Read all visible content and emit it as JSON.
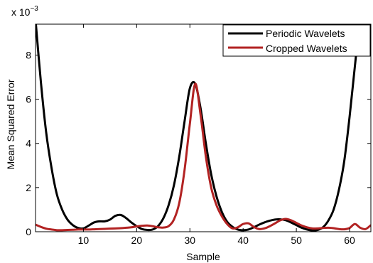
{
  "chart_data": {
    "type": "line",
    "title": "",
    "xlabel": "Sample",
    "ylabel": "Mean Squared Error",
    "xlim": [
      1,
      64
    ],
    "ylim": [
      0,
      9.4
    ],
    "y_scale_multiplier": "x 10",
    "y_scale_exponent": "−3",
    "x_ticks": [
      "10",
      "20",
      "30",
      "40",
      "50",
      "60"
    ],
    "y_ticks": [
      "0",
      "2",
      "4",
      "6",
      "8"
    ],
    "grid": false,
    "legend_position": "top-right",
    "x": [
      1,
      2,
      3,
      4,
      5,
      6,
      7,
      8,
      9,
      10,
      11,
      12,
      13,
      14,
      15,
      16,
      17,
      18,
      19,
      20,
      21,
      22,
      23,
      24,
      25,
      26,
      27,
      28,
      29,
      30,
      31,
      32,
      33,
      34,
      35,
      36,
      37,
      38,
      39,
      40,
      41,
      42,
      43,
      44,
      45,
      46,
      47,
      48,
      49,
      50,
      51,
      52,
      53,
      54,
      55,
      56,
      57,
      58,
      59,
      60,
      61,
      62,
      63,
      64
    ],
    "series": [
      {
        "name": "Periodic Wavelets",
        "color": "#000000",
        "values": [
          9.6,
          6.8,
          4.5,
          2.9,
          1.7,
          1.0,
          0.55,
          0.3,
          0.17,
          0.15,
          0.28,
          0.42,
          0.47,
          0.47,
          0.55,
          0.72,
          0.76,
          0.62,
          0.42,
          0.25,
          0.12,
          0.08,
          0.1,
          0.25,
          0.6,
          1.2,
          2.1,
          3.4,
          5.0,
          6.5,
          6.7,
          5.6,
          4.0,
          2.6,
          1.6,
          0.9,
          0.45,
          0.22,
          0.1,
          0.07,
          0.1,
          0.2,
          0.32,
          0.42,
          0.5,
          0.55,
          0.56,
          0.52,
          0.42,
          0.3,
          0.18,
          0.1,
          0.06,
          0.08,
          0.2,
          0.5,
          1.0,
          1.9,
          3.2,
          5.2,
          7.5,
          9.6,
          9.8,
          9.8
        ]
      },
      {
        "name": "Cropped Wavelets",
        "color": "#b22222",
        "values": [
          0.32,
          0.22,
          0.14,
          0.1,
          0.07,
          0.07,
          0.08,
          0.09,
          0.1,
          0.1,
          0.1,
          0.11,
          0.12,
          0.13,
          0.14,
          0.15,
          0.16,
          0.18,
          0.2,
          0.24,
          0.27,
          0.28,
          0.25,
          0.2,
          0.19,
          0.25,
          0.55,
          1.3,
          2.8,
          4.9,
          6.7,
          5.3,
          3.4,
          2.0,
          1.2,
          0.7,
          0.35,
          0.15,
          0.2,
          0.35,
          0.38,
          0.22,
          0.12,
          0.15,
          0.25,
          0.38,
          0.52,
          0.58,
          0.52,
          0.4,
          0.28,
          0.2,
          0.15,
          0.15,
          0.17,
          0.18,
          0.16,
          0.12,
          0.11,
          0.17,
          0.35,
          0.18,
          0.12,
          0.3
        ]
      }
    ]
  }
}
